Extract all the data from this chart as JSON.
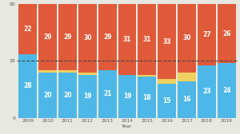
{
  "years": [
    2009,
    2010,
    2011,
    2012,
    2013,
    2014,
    2015,
    2016,
    2017,
    2018,
    2019
  ],
  "dem": [
    28,
    20,
    20,
    19,
    21,
    19,
    18,
    15,
    16,
    23,
    24
  ],
  "rep": [
    22,
    29,
    29,
    30,
    29,
    31,
    31,
    33,
    30,
    27,
    26
  ],
  "ind": [
    0,
    1,
    1,
    1,
    0,
    0,
    1,
    2,
    4,
    0,
    0
  ],
  "dem_color": "#4DB8E8",
  "rep_color": "#E05A3A",
  "ind_color": "#F0D060",
  "dashed_line_y": 25,
  "dashed_color": "#444444",
  "xlabel": "Year",
  "ylim": [
    0,
    50
  ],
  "yticks": [
    0,
    25,
    50
  ],
  "label_fontsize": 5.5,
  "background_color": "#e8e8e0"
}
